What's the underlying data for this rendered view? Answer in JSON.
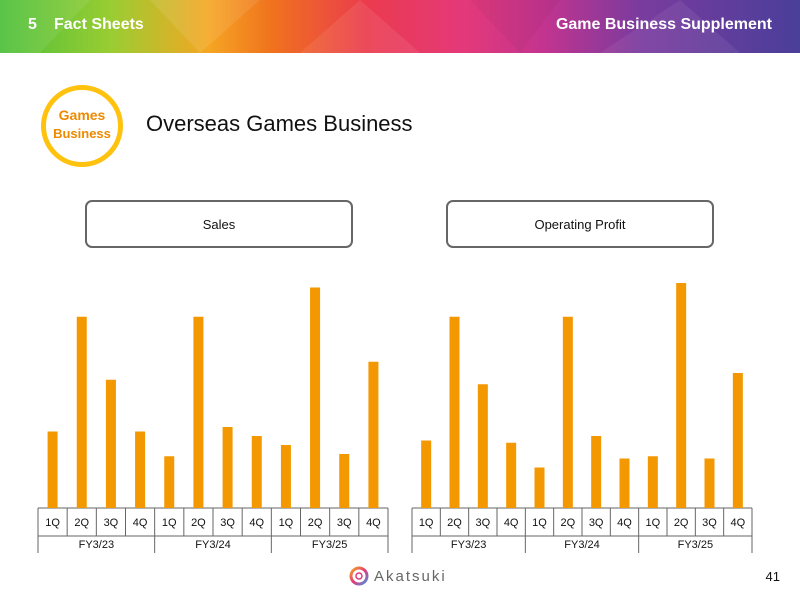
{
  "header": {
    "section_number": "5",
    "section_title": "Fact Sheets",
    "supplement_title": "Game Business Supplement"
  },
  "badge": {
    "line1": "Games",
    "line2": "Business"
  },
  "page_title": "Overseas Games Business",
  "footer": {
    "logo_text": "Akatsuki",
    "page_number": "41"
  },
  "colors": {
    "bar": "#f39800",
    "badge_ring": "#ffc20e",
    "badge_text": "#ee8a00"
  },
  "chart_data": [
    {
      "type": "bar",
      "title": "Sales",
      "categories": [
        "1Q",
        "2Q",
        "3Q",
        "4Q",
        "1Q",
        "2Q",
        "3Q",
        "4Q",
        "1Q",
        "2Q",
        "3Q",
        "4Q"
      ],
      "groups": [
        "FY3/23",
        "FY3/24",
        "FY3/25"
      ],
      "values": [
        34,
        85,
        57,
        34,
        23,
        85,
        36,
        32,
        28,
        98,
        24,
        65
      ],
      "ylim": [
        0,
        100
      ],
      "grid": false,
      "y_axis_shown": false
    },
    {
      "type": "bar",
      "title": "Operating Profit",
      "categories": [
        "1Q",
        "2Q",
        "3Q",
        "4Q",
        "1Q",
        "2Q",
        "3Q",
        "4Q",
        "1Q",
        "2Q",
        "3Q",
        "4Q"
      ],
      "groups": [
        "FY3/23",
        "FY3/24",
        "FY3/25"
      ],
      "values": [
        30,
        85,
        55,
        29,
        18,
        85,
        32,
        22,
        23,
        100,
        22,
        60
      ],
      "ylim": [
        0,
        100
      ],
      "grid": false,
      "y_axis_shown": false
    }
  ]
}
